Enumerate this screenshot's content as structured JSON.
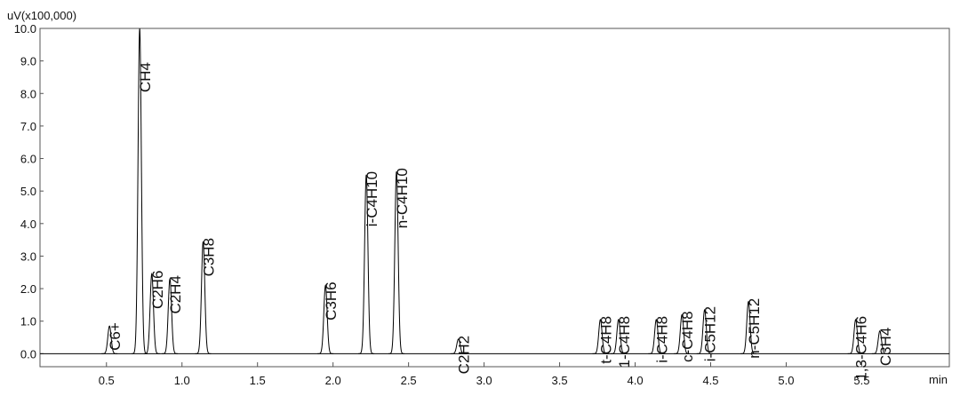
{
  "chart_data": {
    "type": "chromatogram",
    "y_axis_label": "uV(x100,000)",
    "x_axis_label": "min",
    "xlim": [
      0.06,
      6.08
    ],
    "ylim": [
      -0.4,
      10.0
    ],
    "xticks": [
      0.5,
      {
        "value": 1.0,
        "label": "1.0"
      },
      1.5,
      {
        "value": 2.0,
        "label": "2.0"
      },
      2.5,
      {
        "value": 3.0,
        "label": "3.0"
      },
      3.5,
      {
        "value": 4.0,
        "label": "4.0"
      },
      4.5,
      {
        "value": 5.0,
        "label": "5.0"
      },
      5.5
    ],
    "yticks": [
      {
        "value": 0,
        "label": "0.0"
      },
      {
        "value": 1,
        "label": "1.0"
      },
      {
        "value": 2,
        "label": "2.0"
      },
      {
        "value": 3,
        "label": "3.0"
      },
      {
        "value": 4,
        "label": "4.0"
      },
      {
        "value": 5,
        "label": "5.0"
      },
      {
        "value": 6,
        "label": "6.0"
      },
      {
        "value": 7,
        "label": "7.0"
      },
      {
        "value": 8,
        "label": "8.0"
      },
      {
        "value": 9,
        "label": "9.0"
      },
      {
        "value": 10,
        "label": "10.0"
      }
    ],
    "color": "#000000",
    "peaks": {
      "labels": [
        "C6+",
        "CH4",
        "C2H6",
        "C2H4",
        "C3H8",
        "C3H6",
        "i-C4H10",
        "n-C4H10",
        "C2H2",
        "t-C4H8",
        "1-C4H8",
        "i-C4H8",
        "c-C4H8",
        "i-C5H12",
        "n-C5H12",
        "1,3-C4H6",
        "C3H4"
      ],
      "x": [
        0.52,
        0.72,
        0.8,
        0.92,
        1.14,
        1.95,
        2.22,
        2.42,
        2.83,
        3.77,
        3.89,
        4.14,
        4.31,
        4.46,
        4.75,
        5.46,
        5.62
      ],
      "values": [
        0.85,
        10.0,
        2.45,
        2.3,
        3.45,
        2.1,
        5.5,
        5.6,
        0.45,
        1.05,
        1.05,
        1.05,
        1.2,
        1.35,
        1.6,
        1.05,
        0.7
      ]
    }
  }
}
